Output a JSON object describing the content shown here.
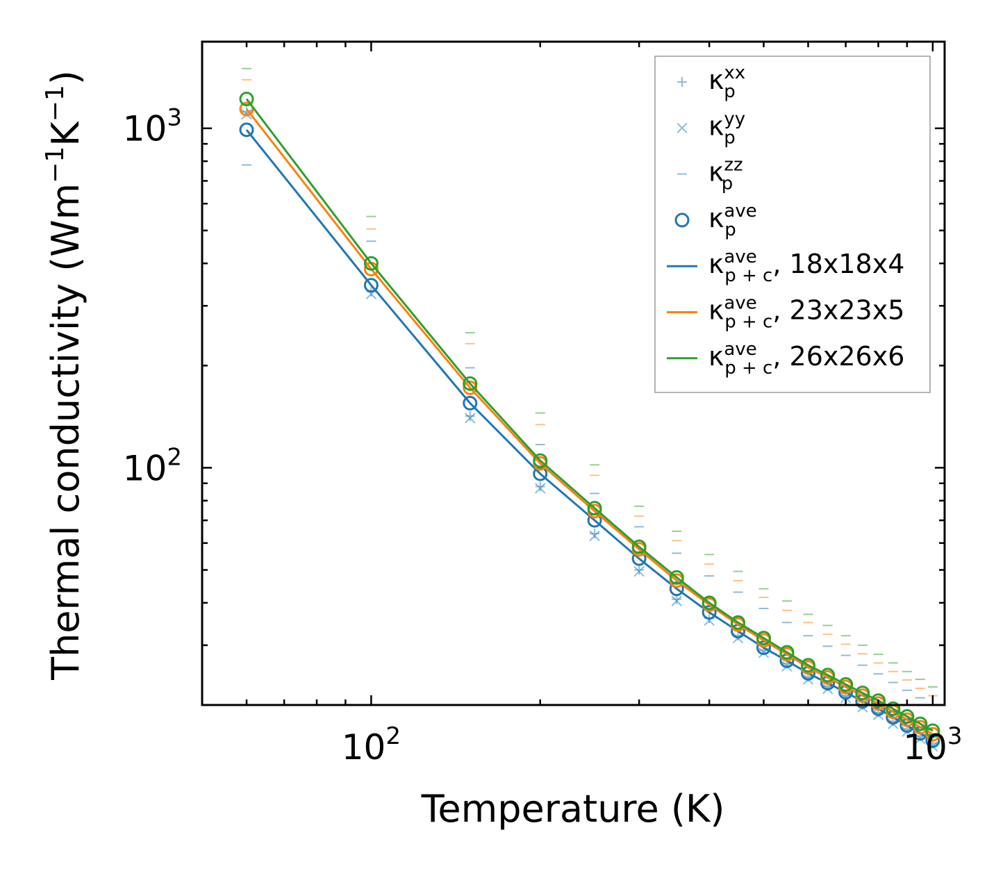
{
  "chart_data": {
    "type": "line",
    "xscale": "log",
    "yscale": "log",
    "xlabel": "Temperature (K)",
    "ylabel_parts": {
      "main": "Thermal conductivity (Wm",
      "sup1": "−1",
      "mid": "K",
      "sup2": "−1",
      "end": ")"
    },
    "xlim": [
      50,
      1050
    ],
    "ylim": [
      20,
      1800
    ],
    "xtick_labels": [
      {
        "value": 100,
        "base": "10",
        "exp": "2"
      },
      {
        "value": 1000,
        "base": "10",
        "exp": "3"
      }
    ],
    "ytick_labels": [
      {
        "value": 100,
        "base": "10",
        "exp": "2"
      },
      {
        "value": 1000,
        "base": "10",
        "exp": "3"
      }
    ],
    "x": [
      60,
      100,
      150,
      200,
      250,
      300,
      350,
      400,
      450,
      500,
      550,
      600,
      650,
      700,
      750,
      800,
      850,
      900,
      950,
      1000
    ],
    "scatter_series": [
      {
        "key": "kxx",
        "marker": "plus",
        "color": "#1f77b4",
        "values": [
          1120,
          330,
          142,
          88,
          64,
          50,
          41,
          36,
          32,
          29,
          26.5,
          24.2,
          22.7,
          21.3,
          20.0,
          19.0,
          17.9,
          17.0,
          16.2,
          15.4
        ]
      },
      {
        "key": "kyy",
        "marker": "x",
        "color": "#1f77b4",
        "values": [
          1100,
          325,
          140,
          87,
          63,
          49.5,
          40.5,
          35.5,
          31.5,
          28.5,
          26.0,
          23.8,
          22.3,
          21.0,
          19.7,
          18.7,
          17.6,
          16.7,
          15.9,
          15.1
        ]
      },
      {
        "key": "kzz_blue",
        "marker": "hline",
        "color": "#1f77b4",
        "values": [
          780,
          465,
          197,
          117,
          84,
          67,
          56,
          48,
          43,
          38.5,
          35,
          32,
          29.8,
          28,
          26.2,
          24.7,
          23.3,
          22.1,
          21.0,
          20.0
        ]
      },
      {
        "key": "kzz_orange",
        "marker": "hline",
        "color": "#ff7f0e",
        "values": [
          1390,
          505,
          232,
          134,
          95,
          72,
          61,
          52,
          46.5,
          41.5,
          38,
          35,
          32.3,
          30.2,
          28.3,
          26.6,
          25.1,
          23.7,
          22.4,
          21.3
        ]
      },
      {
        "key": "kzz_green",
        "marker": "hline",
        "color": "#2ca02c",
        "values": [
          1500,
          550,
          250,
          145,
          102,
          77,
          65,
          55.5,
          49.5,
          44,
          40.5,
          37,
          34.3,
          32,
          30,
          28.2,
          26.6,
          25.1,
          23.8,
          22.6
        ]
      }
    ],
    "ave_series": [
      {
        "name": "18x18x4",
        "color": "#1f77b4",
        "values": [
          990,
          345,
          155,
          96,
          70,
          54,
          44,
          37.5,
          33,
          29.5,
          27,
          24.8,
          23.2,
          21.8,
          20.5,
          19.5,
          18.4,
          17.4,
          16.5,
          15.7
        ]
      },
      {
        "name": "23x23x5",
        "color": "#ff7f0e",
        "values": [
          1140,
          385,
          172,
          103,
          74.5,
          57.5,
          46.5,
          39.5,
          34.5,
          31,
          28.2,
          25.8,
          24.1,
          22.6,
          21.3,
          20.2,
          19.1,
          18.1,
          17.2,
          16.4
        ]
      },
      {
        "name": "26x26x6",
        "color": "#2ca02c",
        "values": [
          1220,
          400,
          177,
          105,
          76,
          58.5,
          47.5,
          40,
          35,
          31.5,
          28.6,
          26.2,
          24.5,
          23.0,
          21.7,
          20.6,
          19.5,
          18.5,
          17.6,
          16.8
        ]
      }
    ],
    "legend": {
      "placement": "top-right",
      "entries": [
        {
          "marker": "plus",
          "color": "#1f77b4",
          "alpha": 0.5,
          "sym": "κ",
          "sub": "p",
          "sup": "xx",
          "text": ""
        },
        {
          "marker": "x",
          "color": "#1f77b4",
          "alpha": 0.5,
          "sym": "κ",
          "sub": "p",
          "sup": "yy",
          "text": ""
        },
        {
          "marker": "hline",
          "color": "#1f77b4",
          "alpha": 0.5,
          "sym": "κ",
          "sub": "p",
          "sup": "zz",
          "text": ""
        },
        {
          "marker": "circle",
          "color": "#1f77b4",
          "alpha": 1,
          "sym": "κ",
          "sub": "p",
          "sup": "ave",
          "text": ""
        },
        {
          "marker": "line",
          "color": "#1f77b4",
          "alpha": 1,
          "sym": "κ",
          "sub": "p + c",
          "sup": "ave",
          "text": ", 18x18x4"
        },
        {
          "marker": "line",
          "color": "#ff7f0e",
          "alpha": 1,
          "sym": "κ",
          "sub": "p + c",
          "sup": "ave",
          "text": ", 23x23x5"
        },
        {
          "marker": "line",
          "color": "#2ca02c",
          "alpha": 1,
          "sym": "κ",
          "sub": "p + c",
          "sup": "ave",
          "text": ", 26x26x6"
        }
      ]
    }
  }
}
